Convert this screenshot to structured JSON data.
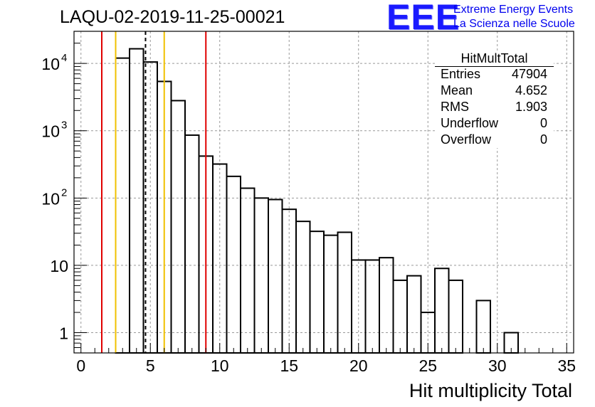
{
  "title": "LAQU-02-2019-11-25-00021",
  "logo": {
    "mark": "EEE",
    "line1": "Extreme Energy Events",
    "line2": "La Scienza nelle Scuole"
  },
  "stats": {
    "name": "HitMultTotal",
    "rows": [
      {
        "label": "Entries",
        "value": "47904"
      },
      {
        "label": "Mean",
        "value": "4.652"
      },
      {
        "label": "RMS",
        "value": "1.903"
      },
      {
        "label": "Underflow",
        "value": "0"
      },
      {
        "label": "Overflow",
        "value": "0"
      }
    ]
  },
  "colors": {
    "hist": "#000000",
    "red_line": "#e00000",
    "yellow_line": "#f0c000",
    "grid": "#999999",
    "logo": "#1a1aff"
  },
  "chart_data": {
    "type": "bar",
    "style": "step histogram",
    "xlabel": "Hit multiplicity Total",
    "ylabel": "",
    "log_y": true,
    "grid": true,
    "xlim": [
      -0.5,
      35.5
    ],
    "ylim": [
      0.5,
      30000
    ],
    "bin_width": 1,
    "x_ticks": [
      0,
      5,
      10,
      15,
      20,
      25,
      30,
      35
    ],
    "y_ticks": [
      {
        "value": 1,
        "base": "1",
        "exp": ""
      },
      {
        "value": 10,
        "base": "10",
        "exp": ""
      },
      {
        "value": 100,
        "base": "10",
        "exp": "2"
      },
      {
        "value": 1000,
        "base": "10",
        "exp": "3"
      },
      {
        "value": 10000,
        "base": "10",
        "exp": "4"
      }
    ],
    "bins": [
      {
        "x": 3,
        "y": 12000
      },
      {
        "x": 4,
        "y": 16500
      },
      {
        "x": 5,
        "y": 10500
      },
      {
        "x": 6,
        "y": 5400
      },
      {
        "x": 7,
        "y": 2800
      },
      {
        "x": 8,
        "y": 860
      },
      {
        "x": 9,
        "y": 420
      },
      {
        "x": 10,
        "y": 320
      },
      {
        "x": 11,
        "y": 210
      },
      {
        "x": 12,
        "y": 140
      },
      {
        "x": 13,
        "y": 100
      },
      {
        "x": 14,
        "y": 95
      },
      {
        "x": 15,
        "y": 68
      },
      {
        "x": 16,
        "y": 45
      },
      {
        "x": 17,
        "y": 32
      },
      {
        "x": 18,
        "y": 28
      },
      {
        "x": 19,
        "y": 31
      },
      {
        "x": 20,
        "y": 12
      },
      {
        "x": 21,
        "y": 12
      },
      {
        "x": 22,
        "y": 13
      },
      {
        "x": 23,
        "y": 6
      },
      {
        "x": 24,
        "y": 7
      },
      {
        "x": 25,
        "y": 2
      },
      {
        "x": 26,
        "y": 9
      },
      {
        "x": 27,
        "y": 6
      },
      {
        "x": 29,
        "y": 3
      },
      {
        "x": 31,
        "y": 1
      }
    ],
    "markers": [
      {
        "x": 1.5,
        "style": "red"
      },
      {
        "x": 2.5,
        "style": "yellow"
      },
      {
        "x": 4.652,
        "style": "dashed"
      },
      {
        "x": 6.0,
        "style": "yellow"
      },
      {
        "x": 9.0,
        "style": "red"
      }
    ]
  }
}
